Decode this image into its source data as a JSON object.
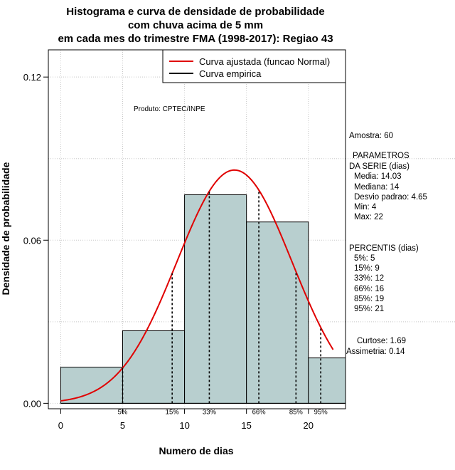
{
  "chart_data": {
    "type": "bar",
    "title": [
      "Histograma e curva de densidade de probabilidade",
      "com chuva acima de 5 mm",
      "em cada mes do trimestre FMA (1998-2017): Regiao 43"
    ],
    "xlabel": "Numero de dias",
    "ylabel": "Densidade de probabilidade",
    "xlim": [
      -1,
      23
    ],
    "ylim": [
      -0.002,
      0.13
    ],
    "x_ticks": [
      0,
      5,
      10,
      15,
      20
    ],
    "y_ticks": [
      0.0,
      0.06,
      0.12
    ],
    "y_tick_labels": [
      "0.00",
      "0.06",
      "0.12"
    ],
    "grid": true,
    "bins": [
      {
        "from": 0,
        "to": 5,
        "density": 0.0133
      },
      {
        "from": 5,
        "to": 10,
        "density": 0.0267
      },
      {
        "from": 10,
        "to": 15,
        "density": 0.0767
      },
      {
        "from": 15,
        "to": 20,
        "density": 0.0667
      },
      {
        "from": 20,
        "to": 23,
        "density": 0.0167
      }
    ],
    "fitted_curve": {
      "name": "Curva ajustada (funcao Normal)",
      "mean": 14.03,
      "sd": 4.65,
      "x_range": [
        0,
        22
      ],
      "color": "#e00000"
    },
    "empirical_curve": {
      "name": "Curva empirica",
      "color": "#000000"
    },
    "percentile_markers": [
      {
        "label": "5%",
        "x": 5
      },
      {
        "label": "15%",
        "x": 9
      },
      {
        "label": "33%",
        "x": 12
      },
      {
        "label": "66%",
        "x": 16
      },
      {
        "label": "85%",
        "x": 19
      },
      {
        "label": "95%",
        "x": 21
      }
    ],
    "legend_position": "top-right",
    "annotation": "Produto: CPTEC/INPE",
    "bar_color": "#b8cfcf"
  },
  "stats": {
    "sample": "Amostra: 60",
    "params_header_1": "PARAMETROS",
    "params_header_2": "DA SERIE (dias)",
    "media": "Media: 14.03",
    "mediana": "Mediana: 14",
    "desvio": "Desvio padrao: 4.65",
    "min": "Min: 4",
    "max": "Max: 22",
    "percentis_header": "PERCENTIS (dias)",
    "p5": "5%: 5",
    "p15": "15%: 9",
    "p33": "33%: 12",
    "p66": "66%: 16",
    "p85": "85%: 19",
    "p95": "95%: 21",
    "curtose": "Curtose: 1.69",
    "assimetria": "Assimetria: 0.14"
  }
}
